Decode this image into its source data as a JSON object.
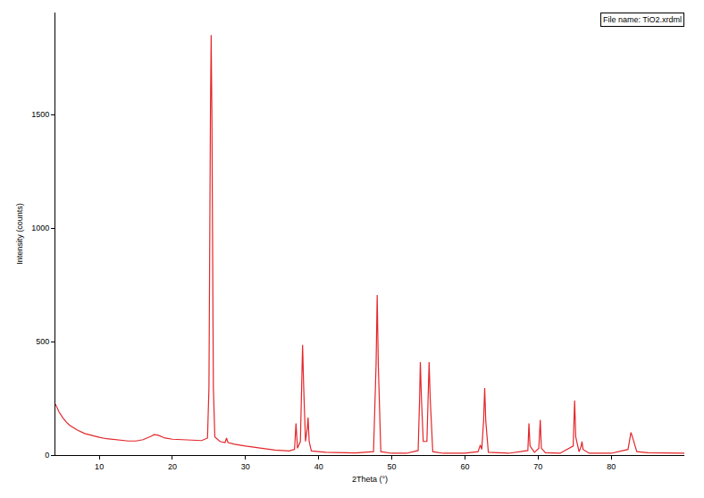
{
  "chart_data": {
    "type": "line",
    "x_label": "2Theta (°)",
    "y_label": "Intensity (counts)",
    "annotations": [
      "File name: TiO2.xrdml"
    ],
    "color": "#e3262a",
    "grid": false,
    "xlim": [
      4,
      90
    ],
    "xticks": [
      10,
      20,
      30,
      40,
      50,
      60,
      70,
      80
    ],
    "ylim": [
      0,
      1950
    ],
    "yticks": [
      0,
      500,
      1000,
      1500
    ],
    "x": [
      4,
      4.5,
      5,
      5.5,
      6,
      7,
      8,
      9,
      10,
      11,
      12,
      13,
      14,
      15,
      16,
      17,
      17.5,
      18,
      19,
      20,
      21,
      22,
      23,
      24,
      24.8,
      25.0,
      25.2,
      25.3,
      25.4,
      25.6,
      25.8,
      26.5,
      27.2,
      27.4,
      27.6,
      28.5,
      30,
      32,
      34,
      36,
      36.7,
      36.9,
      37.1,
      37.5,
      37.7,
      37.8,
      37.95,
      38.2,
      38.45,
      38.55,
      38.7,
      39,
      41,
      43,
      45,
      47.5,
      47.85,
      48.0,
      48.15,
      48.5,
      50,
      52,
      53.6,
      53.8,
      53.9,
      54.05,
      54.3,
      54.8,
      55.0,
      55.1,
      55.25,
      55.6,
      57,
      60,
      61.8,
      62.1,
      62.3,
      62.55,
      62.7,
      62.85,
      63.2,
      66,
      68.6,
      68.75,
      68.9,
      69.5,
      70.1,
      70.3,
      70.45,
      71,
      73,
      74.8,
      75.0,
      75.15,
      75.6,
      75.9,
      76.0,
      76.15,
      77,
      80,
      82.3,
      82.6,
      82.7,
      82.9,
      83.2,
      83.5,
      85,
      88,
      90
    ],
    "values": [
      225,
      190,
      165,
      145,
      130,
      110,
      95,
      85,
      78,
      72,
      68,
      65,
      62,
      62,
      68,
      82,
      90,
      88,
      75,
      70,
      68,
      66,
      65,
      64,
      75,
      300,
      1500,
      1850,
      1500,
      300,
      80,
      60,
      55,
      75,
      55,
      48,
      40,
      30,
      22,
      18,
      25,
      140,
      30,
      60,
      300,
      485,
      300,
      60,
      120,
      165,
      60,
      18,
      12,
      10,
      9,
      15,
      400,
      705,
      400,
      15,
      8,
      8,
      20,
      250,
      410,
      250,
      60,
      60,
      300,
      410,
      250,
      15,
      8,
      8,
      15,
      45,
      25,
      150,
      295,
      150,
      12,
      8,
      20,
      140,
      40,
      12,
      30,
      155,
      30,
      10,
      8,
      40,
      240,
      80,
      15,
      40,
      60,
      25,
      8,
      8,
      25,
      90,
      100,
      80,
      50,
      15,
      10,
      8,
      8
    ]
  }
}
